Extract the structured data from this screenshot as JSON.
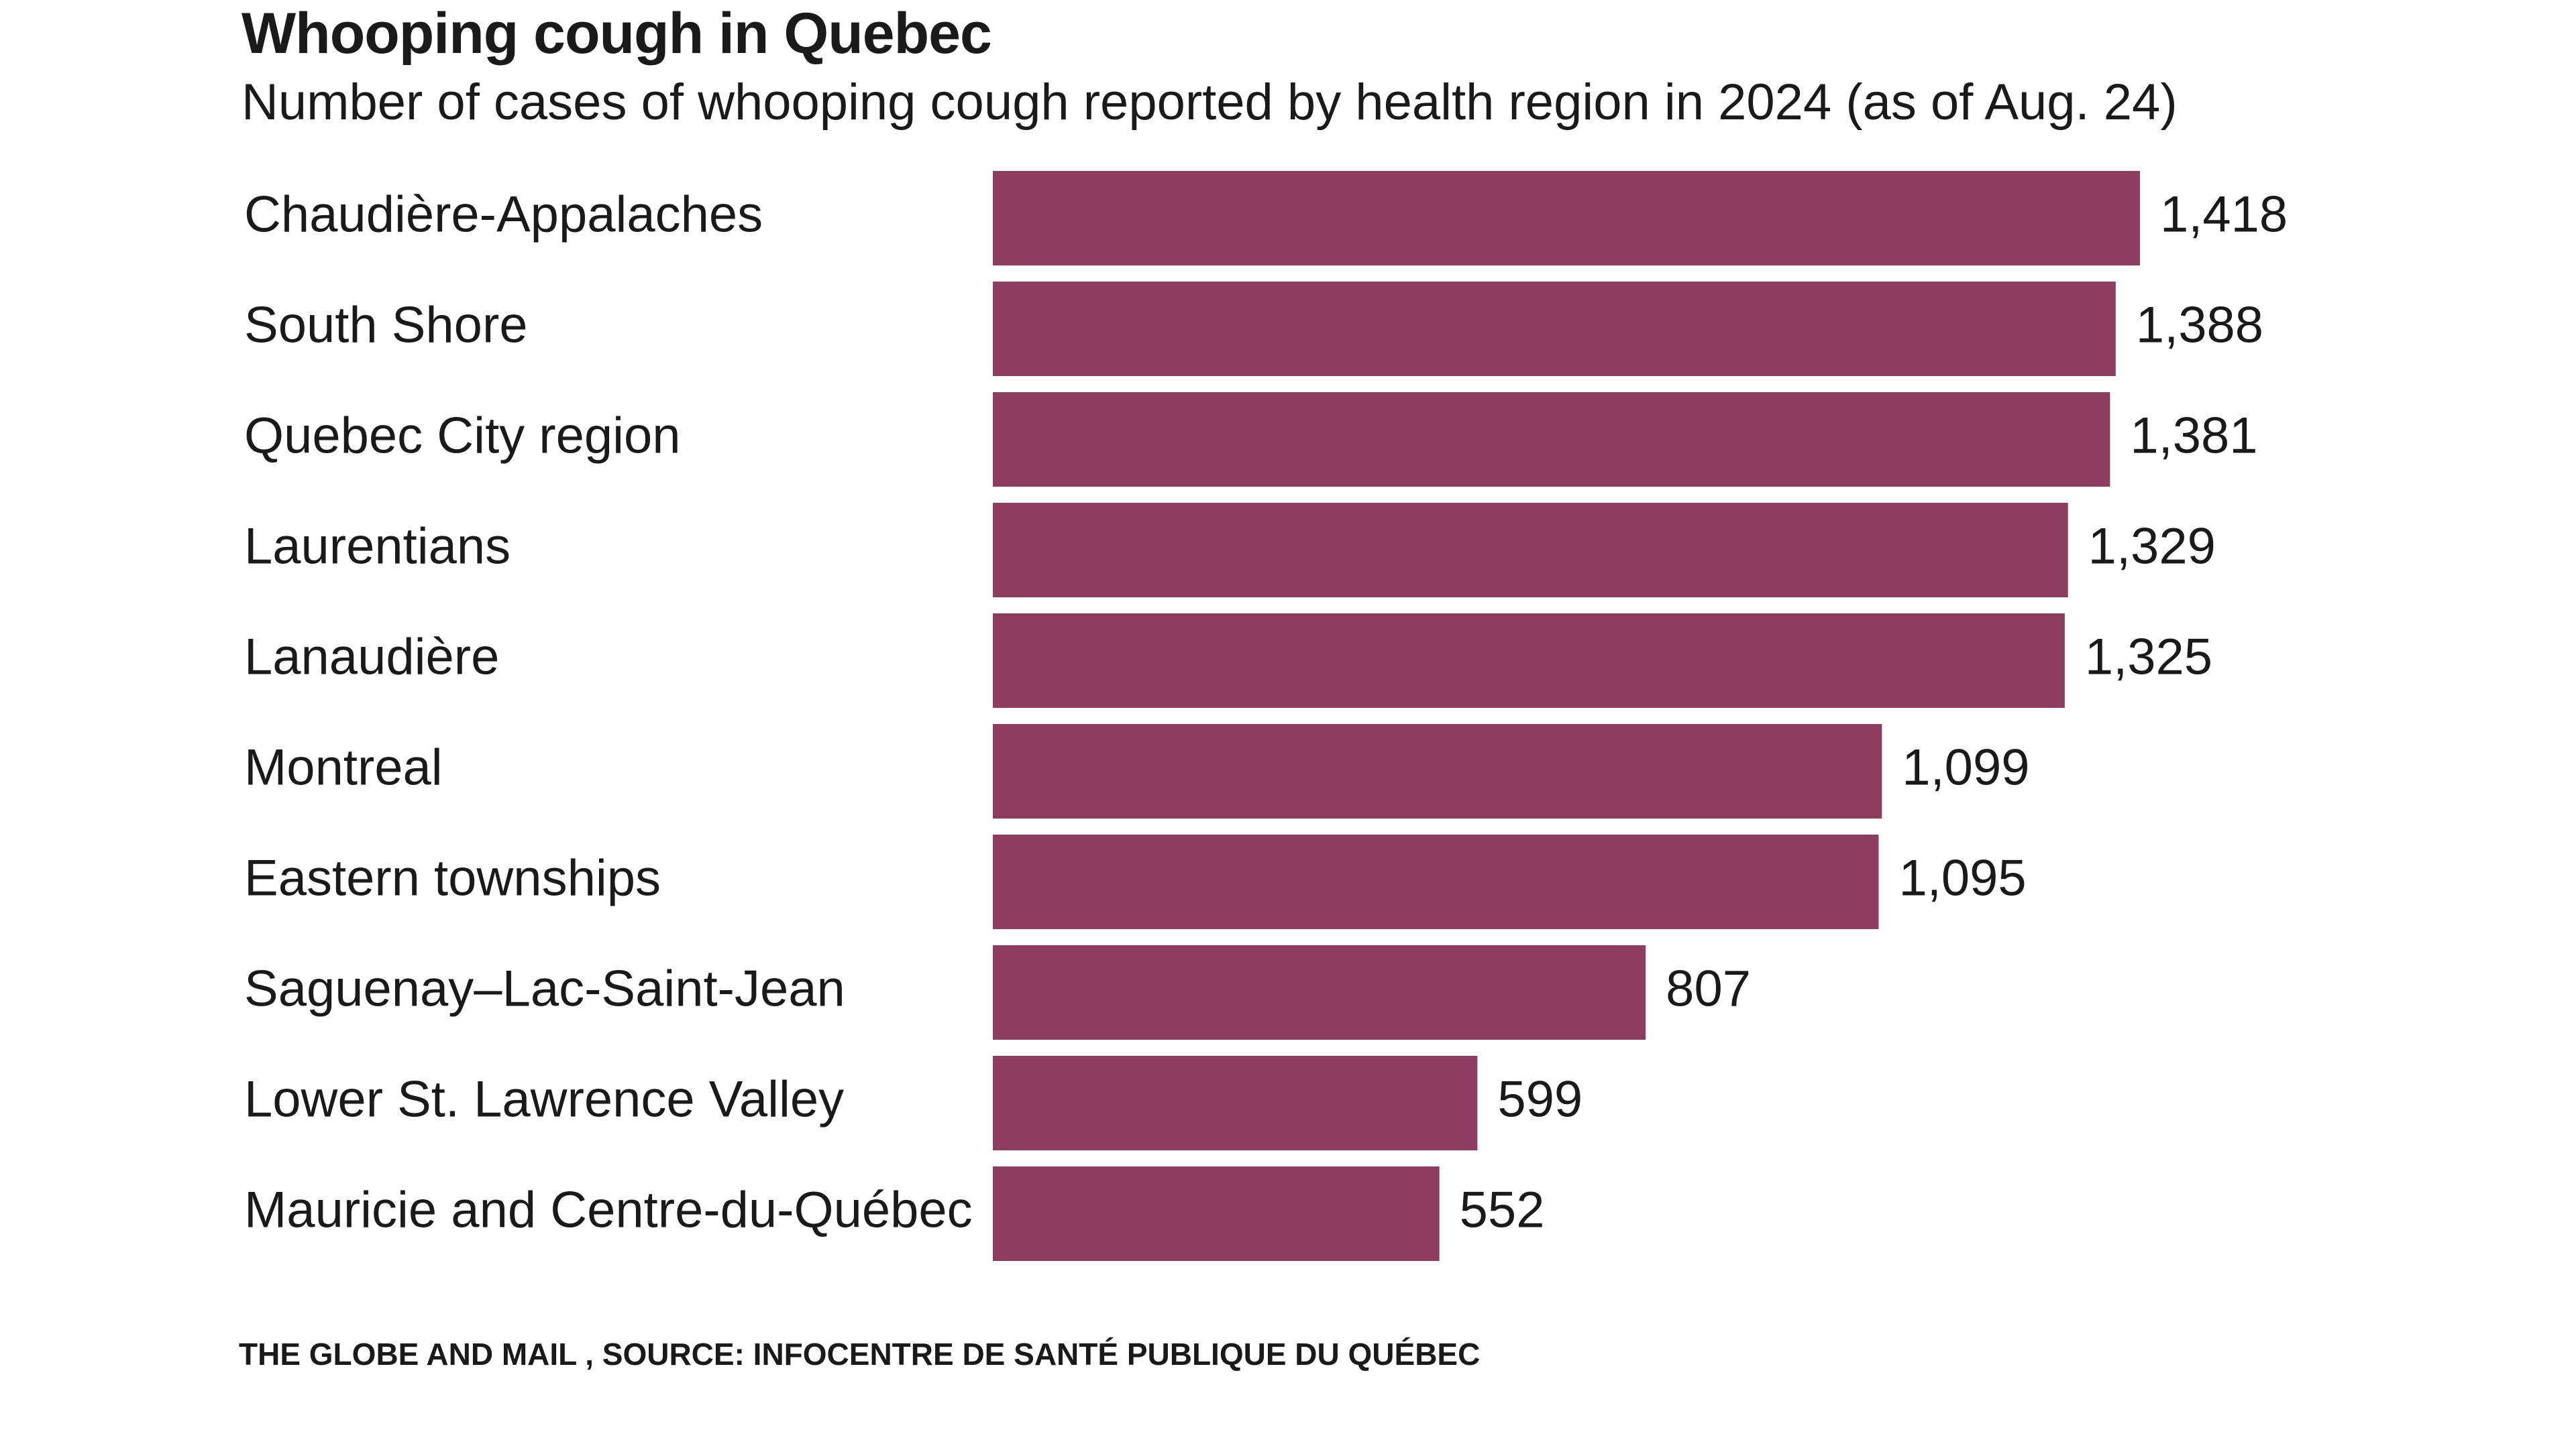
{
  "title": "Whooping cough in Quebec",
  "subtitle": "Number of cases of whooping cough reported by health region in 2024 (as of Aug. 24)",
  "source": "THE GLOBE AND MAIL , SOURCE: INFOCENTRE DE SANTÉ PUBLIQUE DU QUÉBEC",
  "colors": {
    "bar": "#8b3e5f",
    "text": "#1a1a1a",
    "background": "#ffffff"
  },
  "chart_data": {
    "type": "bar",
    "orientation": "horizontal",
    "title": "Whooping cough in Quebec",
    "subtitle": "Number of cases of whooping cough reported by health region in 2024 (as of Aug. 24)",
    "categories": [
      "Chaudière-Appalaches",
      "South Shore",
      "Quebec City region",
      "Laurentians",
      "Lanaudière",
      "Montreal",
      "Eastern townships",
      "Saguenay–Lac-Saint-Jean",
      "Lower St. Lawrence Valley",
      "Mauricie and Centre-du-Québec"
    ],
    "values": [
      1418,
      1388,
      1381,
      1329,
      1325,
      1099,
      1095,
      807,
      599,
      552
    ],
    "value_labels": [
      "1,418",
      "1,388",
      "1,381",
      "1,329",
      "1,325",
      "1,099",
      "1,095",
      "807",
      "599",
      "552"
    ],
    "xlabel": "",
    "ylabel": "",
    "grid": false,
    "legend": "none"
  }
}
